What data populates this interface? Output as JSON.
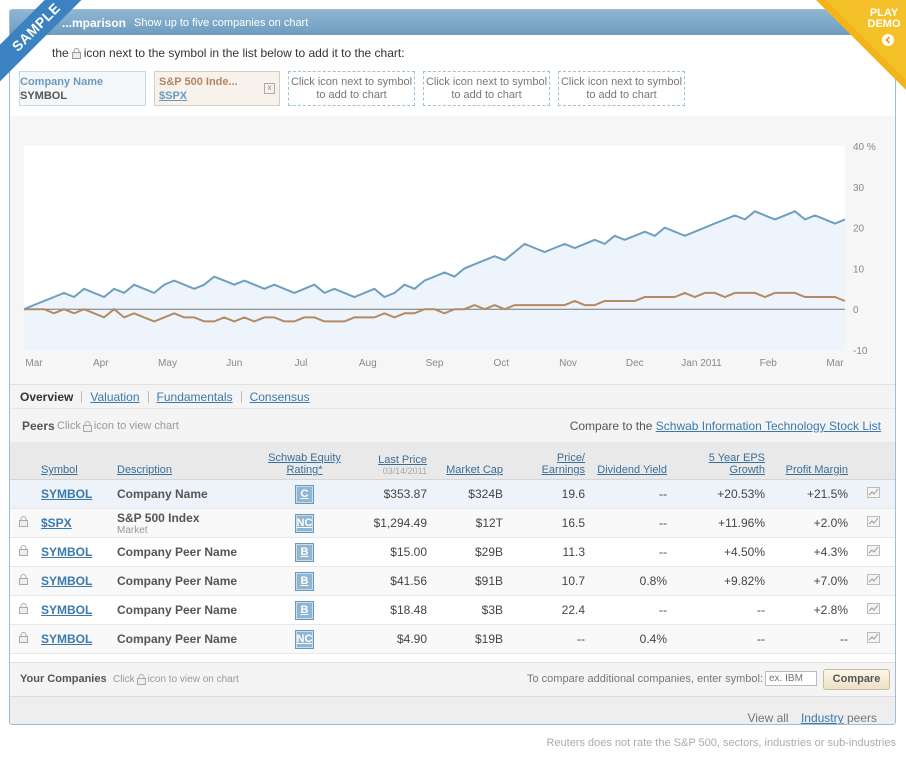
{
  "header": {
    "title": "...mparison",
    "subtitle": "Show up to five companies on chart",
    "instruction_prefix": "the",
    "instruction_suffix": "icon next to the symbol in the list below to add it to the chart:"
  },
  "ribbons": {
    "sample": "SAMPLE",
    "play": "PLAY",
    "demo": "DEMO"
  },
  "slots": {
    "current": {
      "name": "Company Name",
      "symbol": "SYMBOL"
    },
    "spx": {
      "name": "S&P 500 Inde...",
      "symbol": "$SPX",
      "remove": "x"
    },
    "empty": [
      "Click icon next to symbol to add to chart",
      "Click icon next to symbol to add to chart",
      "Click icon next to symbol to add to chart"
    ]
  },
  "chart_data": {
    "type": "line",
    "x_tick_labels": [
      "Mar",
      "Apr",
      "May",
      "Jun",
      "Jul",
      "Aug",
      "Sep",
      "Oct",
      "Nov",
      "Dec",
      "Jan 2011",
      "Feb",
      "Mar"
    ],
    "y_tick_labels": [
      "40 %",
      "30",
      "20",
      "10",
      "0",
      "-10"
    ],
    "ylim": [
      -10,
      40
    ],
    "series": [
      {
        "values": [
          0,
          1,
          2,
          3,
          4,
          3,
          5,
          4,
          3,
          5,
          4,
          6,
          5,
          4,
          6,
          7,
          6,
          5,
          6,
          8,
          7,
          6,
          7,
          6,
          5,
          6,
          5,
          4,
          5,
          6,
          4,
          5,
          4,
          3,
          4,
          5,
          3,
          4,
          6,
          5,
          7,
          8,
          9,
          8,
          10,
          11,
          12,
          13,
          12,
          14,
          16,
          15,
          14,
          15,
          16,
          15,
          16,
          17,
          16,
          18,
          17,
          18,
          19,
          18,
          20,
          19,
          18,
          19,
          20,
          21,
          22,
          23,
          22,
          24,
          23,
          22,
          23,
          24,
          22,
          23,
          22,
          21,
          22
        ],
        "color": "#6f9fc0"
      },
      {
        "values": [
          0,
          0,
          0,
          -1,
          0,
          -1,
          0,
          -1,
          -2,
          0,
          -2,
          -1,
          -2,
          -3,
          -2,
          -1,
          -2,
          -2,
          -3,
          -3,
          -2,
          -3,
          -2,
          -3,
          -2,
          -2,
          -3,
          -3,
          -2,
          -2,
          -3,
          -3,
          -3,
          -2,
          -2,
          -2,
          -1,
          -2,
          -1,
          -1,
          0,
          0,
          -1,
          0,
          0,
          1,
          0,
          1,
          0,
          1,
          1,
          1,
          1,
          1,
          1,
          2,
          1,
          1,
          2,
          2,
          2,
          2,
          3,
          3,
          3,
          3,
          4,
          3,
          4,
          4,
          3,
          4,
          4,
          4,
          3,
          4,
          4,
          4,
          3,
          3,
          3,
          3,
          2
        ],
        "color": "#b48a64"
      }
    ]
  },
  "tabs": [
    {
      "label": "Overview"
    },
    {
      "label": "Valuation"
    },
    {
      "label": "Fundamentals"
    },
    {
      "label": "Consensus"
    }
  ],
  "peers": {
    "label": "Peers",
    "hint_prefix": "Click",
    "hint_suffix": "icon to view chart",
    "compare_prefix": "Compare to the",
    "compare_link": "Schwab Information Technology Stock List"
  },
  "table": {
    "headers": {
      "symbol": "Symbol",
      "description": "Description",
      "rating": "Schwab Equity Rating*",
      "price": "Last Price",
      "price_date": "03/14/2011",
      "cap": "Market Cap",
      "pe": "Price/ Earnings",
      "yield": "Dividend Yield",
      "eps": "5 Year EPS Growth",
      "margin": "Profit Margin"
    },
    "rows": [
      {
        "symbol": "SYMBOL",
        "desc": "Company Name",
        "sub": "",
        "rating": "C",
        "price": "$353.87",
        "cap": "$324B",
        "pe": "19.6",
        "yield": "--",
        "eps": "+20.53%",
        "margin": "+21.5%"
      },
      {
        "symbol": "$SPX",
        "desc": "S&P 500 Index",
        "sub": "Market",
        "rating": "NC",
        "price": "$1,294.49",
        "cap": "$12T",
        "pe": "16.5",
        "yield": "--",
        "eps": "+11.96%",
        "margin": "+2.0%"
      },
      {
        "symbol": "SYMBOL",
        "desc": "Company Peer Name",
        "sub": "",
        "rating": "B",
        "price": "$15.00",
        "cap": "$29B",
        "pe": "11.3",
        "yield": "--",
        "eps": "+4.50%",
        "margin": "+4.3%"
      },
      {
        "symbol": "SYMBOL",
        "desc": "Company Peer Name",
        "sub": "",
        "rating": "B",
        "price": "$41.56",
        "cap": "$91B",
        "pe": "10.7",
        "yield": "0.8%",
        "eps": "+9.82%",
        "margin": "+7.0%"
      },
      {
        "symbol": "SYMBOL",
        "desc": "Company Peer Name",
        "sub": "",
        "rating": "B",
        "price": "$18.48",
        "cap": "$3B",
        "pe": "22.4",
        "yield": "--",
        "eps": "--",
        "margin": "+2.8%"
      },
      {
        "symbol": "SYMBOL",
        "desc": "Company Peer Name",
        "sub": "",
        "rating": "NC",
        "price": "$4.90",
        "cap": "$19B",
        "pe": "--",
        "yield": "0.4%",
        "eps": "--",
        "margin": "--"
      }
    ]
  },
  "your_companies": {
    "label": "Your Companies",
    "hint_prefix": "Click",
    "hint_suffix": "icon to view on chart",
    "enter_label": "To compare additional companies, enter symbol:",
    "placeholder": "ex. IBM",
    "button": "Compare"
  },
  "view_all": {
    "prefix": "View all",
    "link": "Industry",
    "suffix": "peers"
  },
  "footnote": "Reuters does not rate the S&P 500, sectors, industries or sub-industries"
}
